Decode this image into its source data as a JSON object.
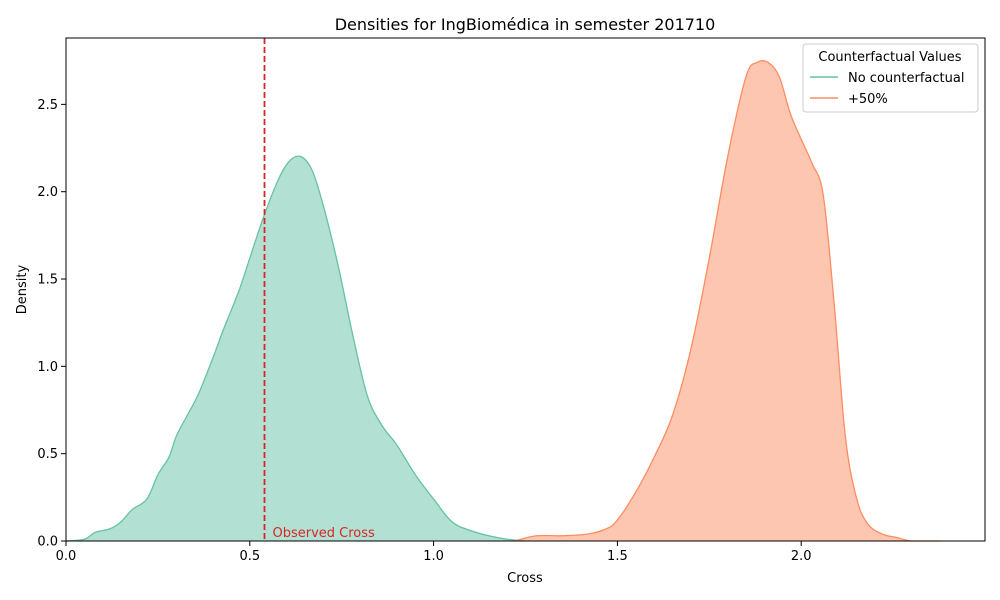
{
  "chart_data": {
    "type": "area",
    "title": "Densities for IngBiomédica in semester 201710",
    "xlabel": "Cross",
    "ylabel": "Density",
    "xlim": [
      0.0,
      2.5
    ],
    "ylim": [
      0.0,
      2.88
    ],
    "xticks": [
      0.0,
      0.5,
      1.0,
      1.5,
      2.0
    ],
    "xtick_labels": [
      "0.0",
      "0.5",
      "1.0",
      "1.5",
      "2.0"
    ],
    "yticks": [
      0.0,
      0.5,
      1.0,
      1.5,
      2.0,
      2.5
    ],
    "ytick_labels": [
      "0.0",
      "0.5",
      "1.0",
      "1.5",
      "2.0",
      "2.5"
    ],
    "grid": false,
    "legend": {
      "title": "Counterfactual Values",
      "placement": "top-right"
    },
    "series": [
      {
        "name": "No counterfactual",
        "color": "#66c2a5",
        "x": [
          0.0,
          0.05,
          0.08,
          0.12,
          0.15,
          0.18,
          0.22,
          0.25,
          0.28,
          0.3,
          0.33,
          0.36,
          0.4,
          0.43,
          0.47,
          0.5,
          0.54,
          0.58,
          0.61,
          0.64,
          0.67,
          0.7,
          0.74,
          0.78,
          0.82,
          0.86,
          0.9,
          0.95,
          1.0,
          1.05,
          1.1,
          1.15,
          1.2,
          1.25
        ],
        "y": [
          0.0,
          0.01,
          0.05,
          0.07,
          0.11,
          0.18,
          0.24,
          0.38,
          0.48,
          0.6,
          0.72,
          0.84,
          1.05,
          1.22,
          1.43,
          1.62,
          1.87,
          2.08,
          2.18,
          2.2,
          2.12,
          1.92,
          1.58,
          1.18,
          0.83,
          0.66,
          0.55,
          0.38,
          0.24,
          0.11,
          0.06,
          0.03,
          0.01,
          0.0
        ]
      },
      {
        "name": "+50%",
        "color": "#fc8d62",
        "x": [
          1.22,
          1.28,
          1.35,
          1.42,
          1.47,
          1.5,
          1.55,
          1.6,
          1.65,
          1.7,
          1.75,
          1.8,
          1.85,
          1.88,
          1.91,
          1.94,
          1.97,
          2.0,
          2.03,
          2.06,
          2.09,
          2.12,
          2.15,
          2.18,
          2.22,
          2.26,
          2.3,
          2.38
        ],
        "y": [
          0.0,
          0.03,
          0.03,
          0.04,
          0.07,
          0.12,
          0.28,
          0.48,
          0.72,
          1.1,
          1.62,
          2.2,
          2.66,
          2.74,
          2.74,
          2.66,
          2.45,
          2.3,
          2.16,
          1.98,
          1.35,
          0.6,
          0.25,
          0.1,
          0.04,
          0.02,
          0.0,
          0.0
        ]
      }
    ],
    "vline": {
      "x": 0.54,
      "color": "#d62728",
      "label": "Observed Cross"
    }
  }
}
